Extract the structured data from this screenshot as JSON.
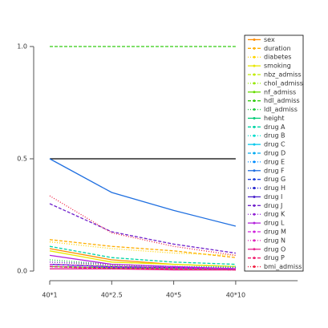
{
  "chart_data": {
    "type": "line",
    "categories": [
      "40*1",
      "40*2.5",
      "40*5",
      "40*10"
    ],
    "ylim": [
      0,
      1
    ],
    "yticks": [
      {
        "value": 0,
        "label": "0.0"
      },
      {
        "value": 0.5,
        "label": "0.5"
      },
      {
        "value": 1,
        "label": "1.0"
      }
    ],
    "hline": 0.5,
    "series": [
      {
        "name": "sex",
        "color": "#ff8c00",
        "style": "solid",
        "values": [
          0.1,
          0.05,
          0.03,
          0.02
        ]
      },
      {
        "name": "duration",
        "color": "#ffae00",
        "style": "dashed",
        "values": [
          0.14,
          0.11,
          0.09,
          0.06
        ]
      },
      {
        "name": "diabetes",
        "color": "#ffd400",
        "style": "dotted",
        "values": [
          0.13,
          0.1,
          0.08,
          0.07
        ]
      },
      {
        "name": "smoking",
        "color": "#e8e800",
        "style": "solid",
        "values": [
          0.09,
          0.04,
          0.03,
          0.02
        ]
      },
      {
        "name": "nbz_admiss",
        "color": "#c0ec00",
        "style": "dashed",
        "values": [
          0.03,
          0.02,
          0.015,
          0.01
        ]
      },
      {
        "name": "chol_admiss",
        "color": "#96e800",
        "style": "dotted",
        "values": [
          0.04,
          0.025,
          0.02,
          0.015
        ]
      },
      {
        "name": "nf_admiss",
        "color": "#66dd00",
        "style": "solid",
        "values": [
          0.02,
          0.015,
          0.01,
          0.01
        ]
      },
      {
        "name": "hdl_admiss",
        "color": "#33cc11",
        "style": "dashed",
        "values": [
          1,
          1,
          1,
          1
        ]
      },
      {
        "name": "ldl_admiss",
        "color": "#22cc44",
        "style": "dotted",
        "values": [
          0.05,
          0.03,
          0.02,
          0.015
        ]
      },
      {
        "name": "height",
        "color": "#00cc77",
        "style": "solid",
        "values": [
          0.03,
          0.02,
          0.015,
          0.01
        ]
      },
      {
        "name": "drug A",
        "color": "#00d4a4",
        "style": "dashed",
        "values": [
          0.11,
          0.06,
          0.04,
          0.03
        ]
      },
      {
        "name": "drug B",
        "color": "#00dccc",
        "style": "dotted",
        "values": [
          0.04,
          0.03,
          0.02,
          0.02
        ]
      },
      {
        "name": "drug C",
        "color": "#00c8ec",
        "style": "solid",
        "values": [
          0.03,
          0.02,
          0.015,
          0.01
        ]
      },
      {
        "name": "drug D",
        "color": "#00aaf0",
        "style": "dashed",
        "values": [
          0.02,
          0.015,
          0.01,
          0.01
        ]
      },
      {
        "name": "drug E",
        "color": "#008cff",
        "style": "dotted",
        "values": [
          0.03,
          0.02,
          0.015,
          0.01
        ]
      },
      {
        "name": "drug F",
        "color": "#1f6fe0",
        "style": "solid",
        "values": [
          0.5,
          0.35,
          0.27,
          0.2
        ]
      },
      {
        "name": "drug G",
        "color": "#2244dd",
        "style": "dashed",
        "values": [
          0.02,
          0.015,
          0.01,
          0.01
        ]
      },
      {
        "name": "drug H",
        "color": "#2222cc",
        "style": "dotted",
        "values": [
          0.02,
          0.01,
          0.01,
          0.005
        ]
      },
      {
        "name": "drug I",
        "color": "#4a22cc",
        "style": "solid",
        "values": [
          0.03,
          0.02,
          0.015,
          0.01
        ]
      },
      {
        "name": "drug J",
        "color": "#7022cc",
        "style": "dashed",
        "values": [
          0.3,
          0.175,
          0.12,
          0.08
        ]
      },
      {
        "name": "drug K",
        "color": "#9022d4",
        "style": "dotted",
        "values": [
          0.04,
          0.03,
          0.02,
          0.015
        ]
      },
      {
        "name": "drug L",
        "color": "#b422dc",
        "style": "solid",
        "values": [
          0.07,
          0.03,
          0.02,
          0.01
        ]
      },
      {
        "name": "drug M",
        "color": "#d022dc",
        "style": "dashed",
        "values": [
          0.03,
          0.02,
          0.015,
          0.01
        ]
      },
      {
        "name": "drug N",
        "color": "#e022bb",
        "style": "dotted",
        "values": [
          0.02,
          0.015,
          0.01,
          0.01
        ]
      },
      {
        "name": "drug O",
        "color": "#e82290",
        "style": "solid",
        "values": [
          0.01,
          0.01,
          0.005,
          0.005
        ]
      },
      {
        "name": "drug P",
        "color": "#f02270",
        "style": "dashed",
        "values": [
          0.02,
          0.01,
          0.01,
          0.005
        ]
      },
      {
        "name": "bmi_admiss",
        "color": "#f02244",
        "style": "dotted",
        "values": [
          0.335,
          0.17,
          0.11,
          0.07
        ]
      }
    ]
  }
}
